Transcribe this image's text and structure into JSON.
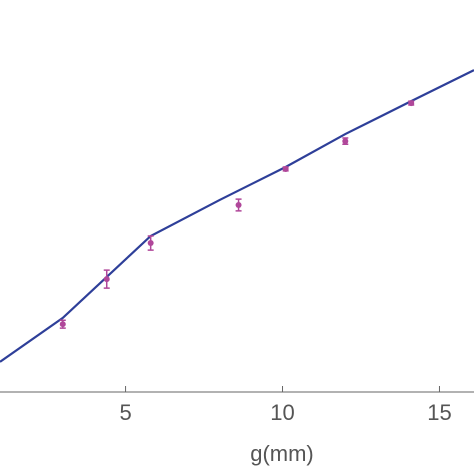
{
  "chart_data": {
    "type": "scatter",
    "xlabel": "g(mm)",
    "xlim": [
      1,
      16.1
    ],
    "xticks": [
      5,
      10,
      15
    ],
    "ylim": [
      0,
      100
    ],
    "points": {
      "color": "#b0479a",
      "x": [
        3.0,
        4.4,
        5.8,
        8.6,
        10.1,
        12.0,
        14.1
      ],
      "values": [
        17.3,
        28.8,
        38.0,
        47.7,
        56.9,
        64.0,
        73.7
      ],
      "errors": [
        1.0,
        2.3,
        1.8,
        1.5,
        0.5,
        0.8,
        0.5
      ]
    },
    "fit": {
      "color": "#2e3f99",
      "x": [
        1,
        3,
        5.8,
        8,
        10.1,
        12,
        14.1,
        16.1
      ],
      "values": [
        7.7,
        18.9,
        39.8,
        49.0,
        57.4,
        65.8,
        74.2,
        82.1
      ]
    }
  }
}
